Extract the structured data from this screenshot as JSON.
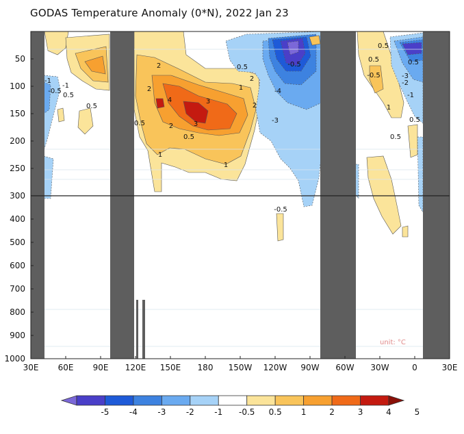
{
  "chart_data": {
    "type": "heatmap",
    "title": "GODAS Temperature Anomaly (0*N), 2022 Jan 23",
    "unit_label": "unit: °C",
    "x_ticks": [
      "30E",
      "60E",
      "90E",
      "120E",
      "150E",
      "180",
      "150W",
      "120W",
      "90W",
      "60W",
      "30W",
      "0",
      "30E"
    ],
    "y_ticks_upper": [
      "50",
      "100",
      "150",
      "200",
      "250",
      "300"
    ],
    "y_ticks_lower": [
      "300",
      "400",
      "500",
      "600",
      "700",
      "800",
      "900",
      "1000"
    ],
    "colorbar": {
      "labels": [
        "-5",
        "-4",
        "-3",
        "-2",
        "-1",
        "-0.5",
        "0.5",
        "1",
        "2",
        "3",
        "4",
        "5"
      ],
      "colors": [
        "#7b68d8",
        "#4a3fc8",
        "#1e5ad8",
        "#3d82e0",
        "#6aaaf0",
        "#a6d2f7",
        "#ffffff",
        "#fbe49a",
        "#f9c45a",
        "#f7a030",
        "#f06a18",
        "#c41a10",
        "#8a1008"
      ]
    },
    "contour_labels": [
      {
        "text": "-1"
      },
      {
        "text": "-0.5"
      },
      {
        "text": "-1"
      },
      {
        "text": "0.5"
      },
      {
        "text": "0.5"
      },
      {
        "text": "2"
      },
      {
        "text": "2"
      },
      {
        "text": "4"
      },
      {
        "text": "3"
      },
      {
        "text": "3"
      },
      {
        "text": "2"
      },
      {
        "text": "0.5"
      },
      {
        "text": "2"
      },
      {
        "text": "0.5"
      },
      {
        "text": "1"
      },
      {
        "text": "1"
      },
      {
        "text": "1"
      },
      {
        "text": "2"
      },
      {
        "text": "0.5"
      },
      {
        "text": "-0.5"
      },
      {
        "text": "-4"
      },
      {
        "text": "-3"
      },
      {
        "text": "-0.5"
      },
      {
        "text": "0.5"
      },
      {
        "text": "1"
      },
      {
        "text": "0.5"
      },
      {
        "text": "0.5"
      },
      {
        "text": "0.5"
      },
      {
        "text": "-3"
      },
      {
        "text": "-2"
      },
      {
        "text": "-1"
      },
      {
        "text": "-0.5"
      },
      {
        "text": "0.5"
      },
      {
        "text": "1"
      }
    ]
  }
}
